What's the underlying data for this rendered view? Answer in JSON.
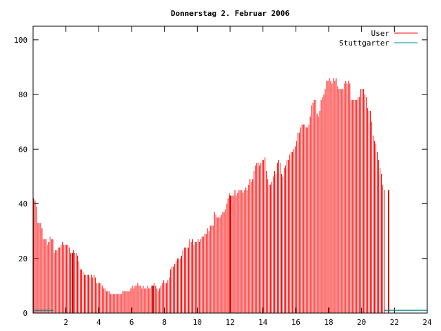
{
  "chart_data": {
    "type": "bar",
    "title": "Donnerstag 2. Februar 2006",
    "xlabel": "",
    "ylabel": "",
    "xlim": [
      0,
      24
    ],
    "ylim": [
      0,
      105
    ],
    "xticks": [
      2,
      4,
      6,
      8,
      10,
      12,
      14,
      16,
      18,
      20,
      22,
      24
    ],
    "yticks": [
      0,
      20,
      40,
      60,
      80,
      100
    ],
    "legend_position": "top-right",
    "series": [
      {
        "name": "User",
        "color": "#ff0000",
        "interval_minutes": 5,
        "values": [
          42,
          41,
          39,
          33,
          33,
          33,
          31,
          27,
          27,
          27,
          25,
          26,
          28,
          27,
          27,
          22,
          23,
          23,
          24,
          24,
          25,
          26,
          25,
          25,
          25,
          25,
          24,
          22,
          22,
          23,
          22,
          22,
          21,
          19,
          16,
          16,
          15,
          14,
          14,
          14,
          14,
          13,
          14,
          13,
          14,
          13,
          11,
          11,
          11,
          11,
          10,
          9,
          9,
          8,
          8,
          8,
          7,
          7,
          7,
          7,
          7,
          7,
          7,
          7,
          7,
          8,
          8,
          8,
          8,
          8,
          8,
          9,
          10,
          9,
          10,
          10,
          11,
          10,
          10,
          9,
          10,
          9,
          9,
          10,
          9,
          9,
          10,
          10,
          11,
          10,
          9,
          8,
          9,
          10,
          11,
          12,
          11,
          11,
          12,
          13,
          16,
          17,
          17,
          18,
          19,
          20,
          20,
          20,
          21,
          23,
          24,
          24,
          24,
          24,
          27,
          26,
          27,
          25,
          26,
          26,
          27,
          26,
          27,
          28,
          28,
          29,
          29,
          31,
          30,
          32,
          32,
          32,
          37,
          36,
          35,
          35,
          35,
          36,
          37,
          37,
          38,
          40,
          42,
          44,
          43,
          43,
          43,
          45,
          43,
          44,
          45,
          45,
          45,
          44,
          45,
          46,
          45,
          47,
          49,
          48,
          49,
          52,
          54,
          55,
          55,
          54,
          55,
          56,
          56,
          57,
          52,
          49,
          47,
          47,
          48,
          50,
          52,
          51,
          55,
          56,
          55,
          51,
          50,
          53,
          54,
          56,
          56,
          58,
          59,
          59,
          60,
          61,
          63,
          66,
          66,
          68,
          69,
          69,
          69,
          68,
          68,
          69,
          72,
          76,
          77,
          78,
          78,
          73,
          72,
          74,
          78,
          79,
          80,
          82,
          85,
          85,
          86,
          85,
          84,
          86,
          85,
          86,
          83,
          82,
          82,
          82,
          82,
          84,
          85,
          84,
          85,
          84,
          78,
          78,
          78,
          78,
          78,
          79,
          79,
          82,
          82,
          82,
          80,
          79,
          75,
          74,
          74,
          70,
          65,
          63,
          62,
          59,
          56,
          53,
          51,
          47,
          45
        ]
      },
      {
        "name": "Stuttgarter",
        "color": "#008b8b",
        "x": [
          0,
          1.25,
          21.4,
          24
        ],
        "values": [
          1,
          1,
          1,
          1
        ]
      }
    ],
    "annotations": [
      {
        "x": 2.4,
        "kind": "vertical-marker"
      },
      {
        "x": 7.3,
        "kind": "vertical-marker"
      },
      {
        "x": 12.0,
        "kind": "vertical-marker"
      },
      {
        "x": 21.65,
        "kind": "vertical-marker"
      }
    ]
  }
}
